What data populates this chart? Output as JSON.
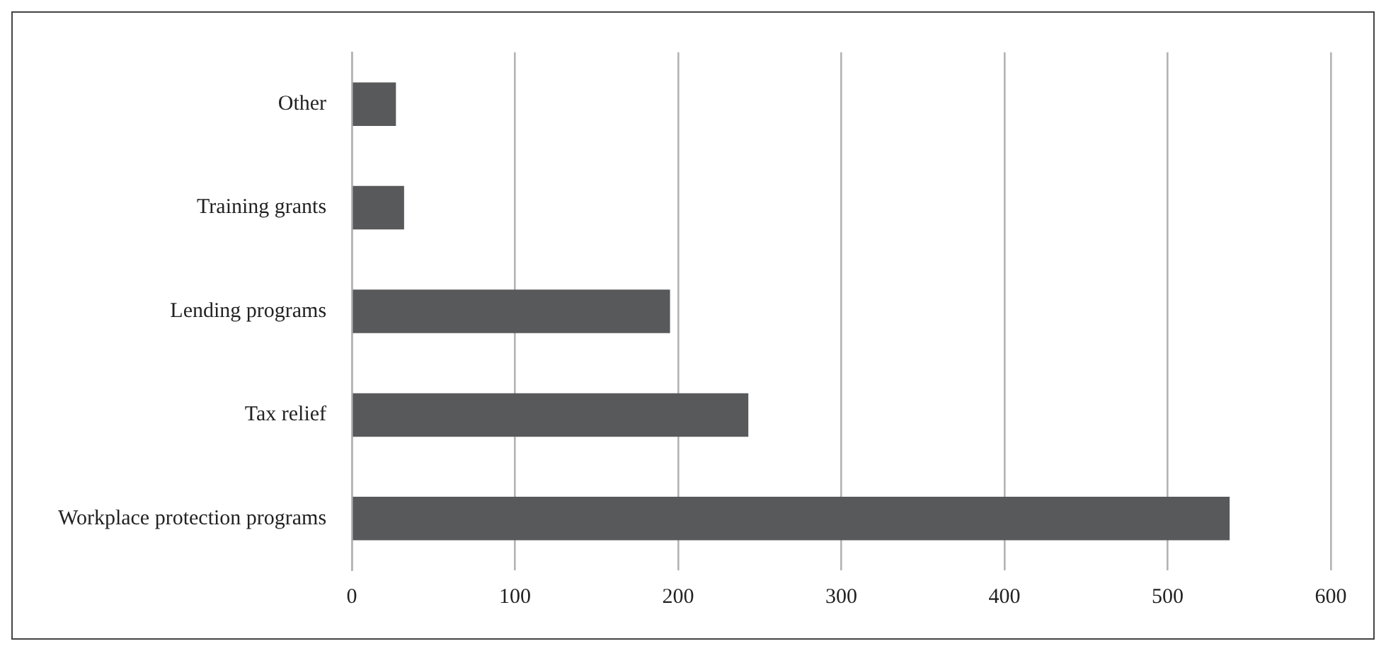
{
  "chart_data": {
    "type": "bar",
    "orientation": "horizontal",
    "categories": [
      "Other",
      "Training grants",
      "Lending programs",
      "Tax relief",
      "Workplace protection programs"
    ],
    "values": [
      27,
      32,
      195,
      243,
      538
    ],
    "color": "#58595b",
    "xlim": [
      0,
      600
    ],
    "xticks": [
      0,
      100,
      200,
      300,
      400,
      500,
      600
    ],
    "grid": "x",
    "legend": false
  }
}
